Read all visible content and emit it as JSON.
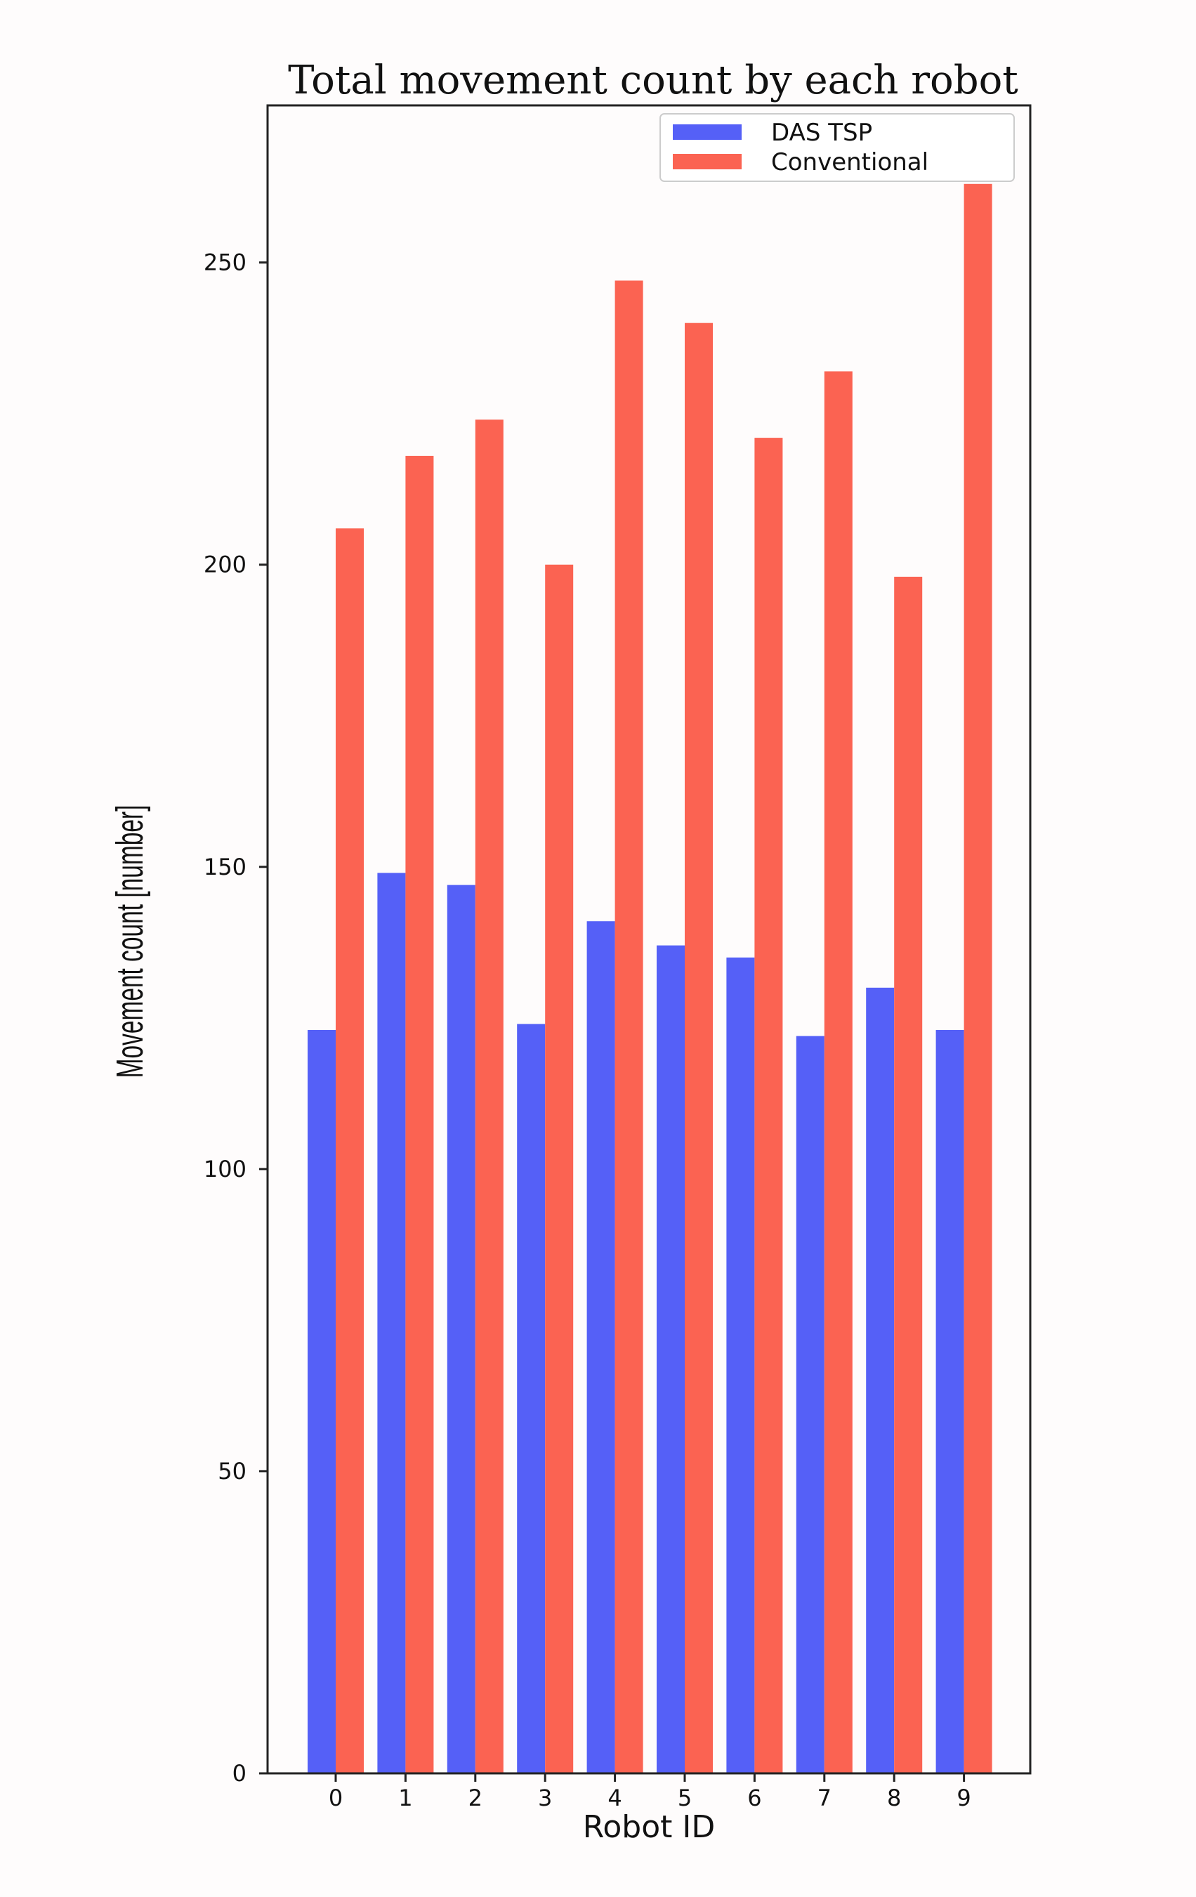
{
  "chart_data": {
    "type": "bar",
    "title": "Total movement count by each robot",
    "xlabel": "Robot ID",
    "ylabel": "Movement count [number]",
    "categories": [
      "0",
      "1",
      "2",
      "3",
      "4",
      "5",
      "6",
      "7",
      "8",
      "9"
    ],
    "series": [
      {
        "name": "DAS TSP",
        "color": "#5560f7",
        "values": [
          123,
          149,
          147,
          124,
          141,
          137,
          135,
          122,
          130,
          123
        ]
      },
      {
        "name": "Conventional",
        "color": "#fb6352",
        "values": [
          206,
          218,
          224,
          200,
          247,
          240,
          221,
          232,
          198,
          263
        ]
      }
    ],
    "ylim": [
      0,
      276
    ],
    "yticks": [
      0,
      50,
      100,
      150,
      200,
      250
    ],
    "grid": false,
    "legend_position": "top-right"
  }
}
